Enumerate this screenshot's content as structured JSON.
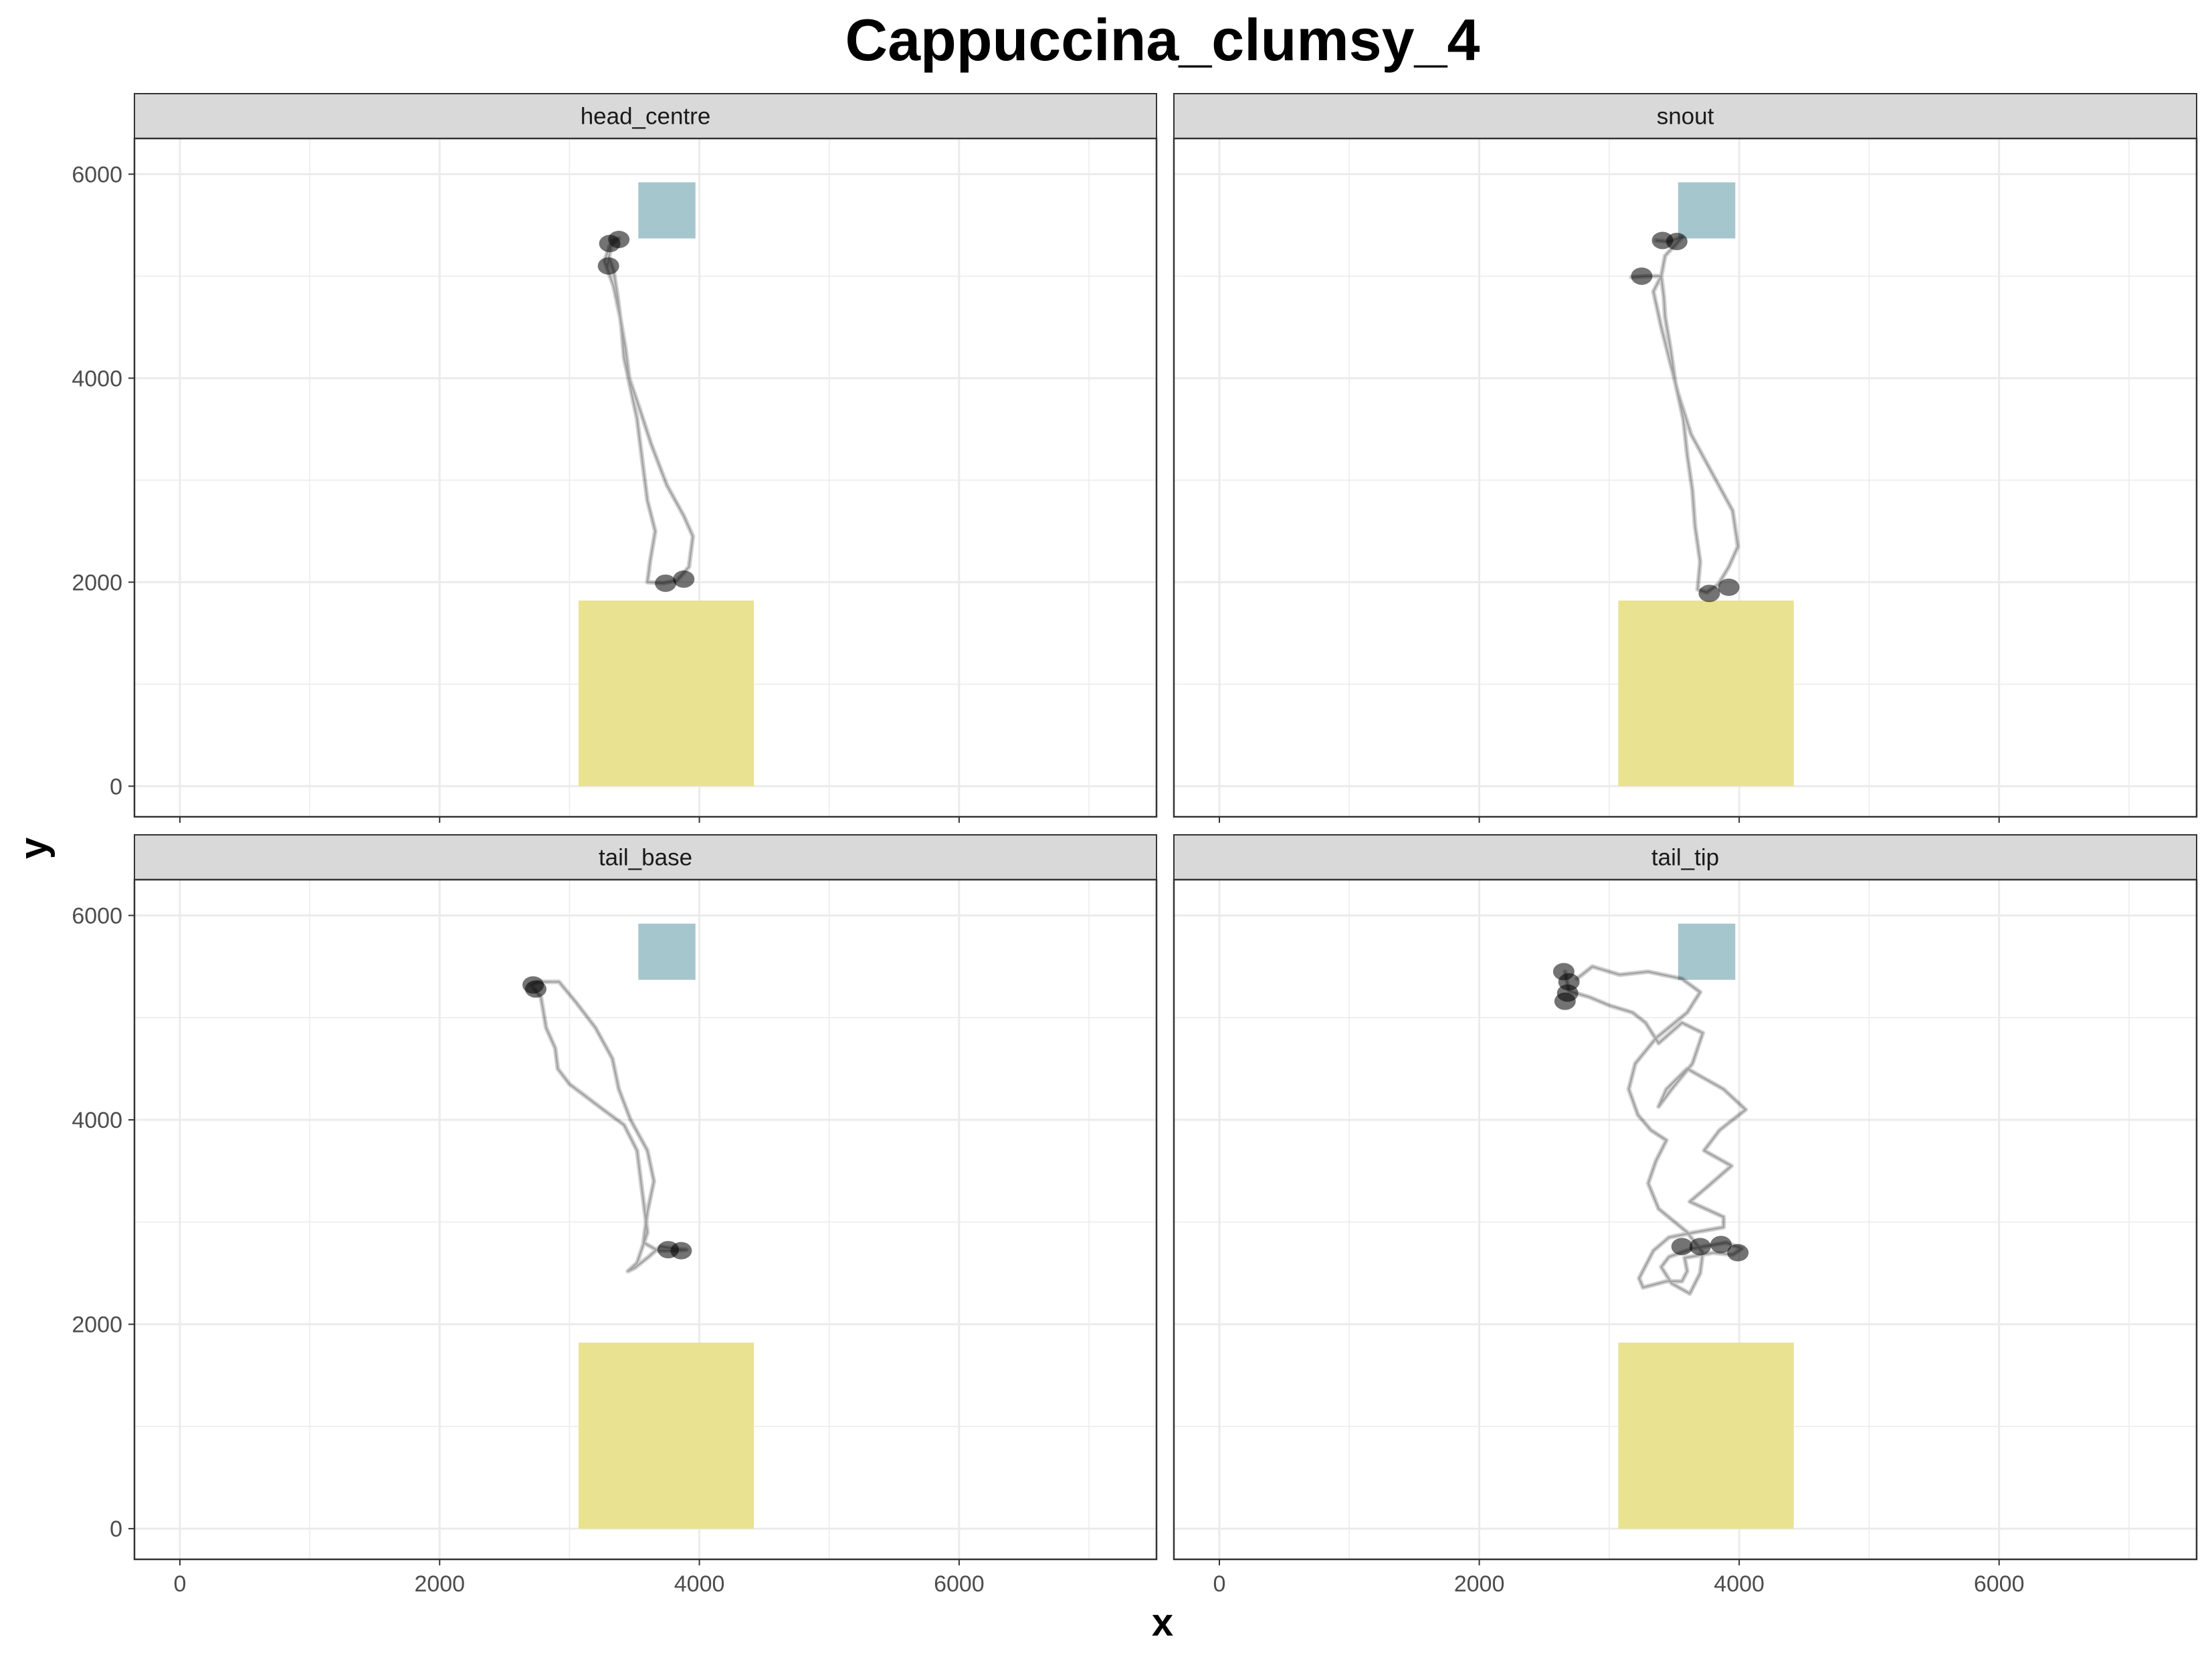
{
  "chart_data": {
    "type": "scatter",
    "title": "Cappuccina_clumsy_4",
    "xlabel": "x",
    "ylabel": "y",
    "xlim": [
      -350,
      7520
    ],
    "ylim": [
      -300,
      6350
    ],
    "x_ticks": [
      0,
      2000,
      4000,
      6000
    ],
    "y_ticks": [
      0,
      2000,
      4000,
      6000
    ],
    "grid": true,
    "layout": "facet-grid 2x2",
    "colors": {
      "zone_small": "#a6c6ce",
      "zone_large": "#e9e290",
      "track": "#000000",
      "strip_bg": "#d9d9d9",
      "grid": "#ebebeb",
      "border": "#333333"
    },
    "zones": [
      {
        "name": "small-zone",
        "x": [
          3530,
          3970
        ],
        "y": [
          5370,
          5920
        ],
        "color": "#a6c6ce"
      },
      {
        "name": "large-zone",
        "x": [
          3070,
          4420
        ],
        "y": [
          0,
          1820
        ],
        "color": "#e9e290"
      }
    ],
    "panels": [
      {
        "label": "head_centre",
        "track": [
          [
            3290,
            5080
          ],
          [
            3310,
            5230
          ],
          [
            3330,
            5350
          ],
          [
            3380,
            5370
          ],
          [
            3310,
            5300
          ],
          [
            3270,
            5150
          ],
          [
            3340,
            4900
          ],
          [
            3390,
            4600
          ],
          [
            3430,
            4300
          ],
          [
            3460,
            4000
          ],
          [
            3540,
            3700
          ],
          [
            3630,
            3350
          ],
          [
            3750,
            2950
          ],
          [
            3880,
            2650
          ],
          [
            3950,
            2450
          ],
          [
            3920,
            2150
          ],
          [
            3830,
            2020
          ],
          [
            3720,
            1990
          ],
          [
            3600,
            2000
          ],
          [
            3620,
            2200
          ],
          [
            3660,
            2500
          ],
          [
            3600,
            2800
          ],
          [
            3560,
            3200
          ],
          [
            3520,
            3600
          ],
          [
            3470,
            3900
          ],
          [
            3420,
            4200
          ],
          [
            3400,
            4500
          ],
          [
            3370,
            4800
          ],
          [
            3340,
            5050
          ],
          [
            3300,
            5200
          ]
        ],
        "clusters": [
          [
            3310,
            5320
          ],
          [
            3300,
            5100
          ],
          [
            3380,
            5360
          ],
          [
            3740,
            1990
          ],
          [
            3880,
            2030
          ]
        ]
      },
      {
        "label": "snout",
        "track": [
          [
            3360,
            5350
          ],
          [
            3460,
            5340
          ],
          [
            3560,
            5380
          ],
          [
            3430,
            5200
          ],
          [
            3400,
            5000
          ],
          [
            3340,
            4850
          ],
          [
            3400,
            4500
          ],
          [
            3460,
            4200
          ],
          [
            3530,
            3850
          ],
          [
            3630,
            3450
          ],
          [
            3800,
            3050
          ],
          [
            3950,
            2700
          ],
          [
            3990,
            2350
          ],
          [
            3920,
            2150
          ],
          [
            3840,
            1980
          ],
          [
            3750,
            1900
          ],
          [
            3680,
            1930
          ],
          [
            3700,
            2200
          ],
          [
            3660,
            2550
          ],
          [
            3640,
            2900
          ],
          [
            3600,
            3250
          ],
          [
            3570,
            3600
          ],
          [
            3510,
            3950
          ],
          [
            3470,
            4300
          ],
          [
            3430,
            4600
          ],
          [
            3420,
            4800
          ],
          [
            3400,
            5000
          ],
          [
            3290,
            5000
          ],
          [
            3170,
            4990
          ]
        ],
        "clusters": [
          [
            3410,
            5350
          ],
          [
            3520,
            5340
          ],
          [
            3250,
            5000
          ],
          [
            3770,
            1890
          ],
          [
            3920,
            1950
          ]
        ]
      },
      {
        "label": "tail_base",
        "track": [
          [
            2700,
            5320
          ],
          [
            2760,
            5350
          ],
          [
            2920,
            5350
          ],
          [
            3050,
            5150
          ],
          [
            3200,
            4900
          ],
          [
            3330,
            4600
          ],
          [
            3380,
            4300
          ],
          [
            3470,
            4000
          ],
          [
            3600,
            3700
          ],
          [
            3650,
            3400
          ],
          [
            3600,
            3100
          ],
          [
            3570,
            2800
          ],
          [
            3680,
            2720
          ],
          [
            3830,
            2720
          ],
          [
            3900,
            2730
          ],
          [
            3800,
            2740
          ],
          [
            3700,
            2760
          ],
          [
            3600,
            2650
          ],
          [
            3500,
            2550
          ],
          [
            3450,
            2520
          ],
          [
            3520,
            2600
          ],
          [
            3600,
            2900
          ],
          [
            3560,
            3300
          ],
          [
            3520,
            3700
          ],
          [
            3420,
            3950
          ],
          [
            3260,
            4100
          ],
          [
            3000,
            4350
          ],
          [
            2910,
            4500
          ],
          [
            2890,
            4700
          ],
          [
            2820,
            4900
          ],
          [
            2780,
            5200
          ],
          [
            2720,
            5290
          ]
        ],
        "clusters": [
          [
            2720,
            5320
          ],
          [
            2740,
            5280
          ],
          [
            3760,
            2730
          ],
          [
            3860,
            2720
          ]
        ]
      },
      {
        "label": "tail_tip",
        "track": [
          [
            2660,
            5450
          ],
          [
            2690,
            5260
          ],
          [
            2850,
            5200
          ],
          [
            3000,
            5120
          ],
          [
            3180,
            5050
          ],
          [
            3280,
            4950
          ],
          [
            3380,
            4750
          ],
          [
            3560,
            4950
          ],
          [
            3720,
            4850
          ],
          [
            3640,
            4550
          ],
          [
            3480,
            4300
          ],
          [
            3380,
            4130
          ],
          [
            3440,
            4300
          ],
          [
            3600,
            4500
          ],
          [
            3880,
            4300
          ],
          [
            4050,
            4100
          ],
          [
            3850,
            3900
          ],
          [
            3730,
            3700
          ],
          [
            3940,
            3550
          ],
          [
            3760,
            3350
          ],
          [
            3620,
            3200
          ],
          [
            3880,
            3050
          ],
          [
            3880,
            2950
          ],
          [
            3660,
            2900
          ],
          [
            3460,
            2850
          ],
          [
            3340,
            2720
          ],
          [
            3230,
            2450
          ],
          [
            3260,
            2360
          ],
          [
            3440,
            2420
          ],
          [
            3560,
            2420
          ],
          [
            3600,
            2520
          ],
          [
            3580,
            2650
          ],
          [
            3800,
            2700
          ],
          [
            3950,
            2680
          ],
          [
            4020,
            2740
          ],
          [
            3900,
            2800
          ],
          [
            3640,
            2740
          ],
          [
            3460,
            2660
          ],
          [
            3400,
            2560
          ],
          [
            3480,
            2400
          ],
          [
            3620,
            2300
          ],
          [
            3700,
            2500
          ],
          [
            3720,
            2700
          ],
          [
            3600,
            2900
          ],
          [
            3380,
            3130
          ],
          [
            3300,
            3380
          ],
          [
            3360,
            3600
          ],
          [
            3440,
            3800
          ],
          [
            3320,
            3900
          ],
          [
            3220,
            4050
          ],
          [
            3150,
            4300
          ],
          [
            3200,
            4550
          ],
          [
            3360,
            4800
          ],
          [
            3600,
            5050
          ],
          [
            3700,
            5250
          ],
          [
            3560,
            5380
          ],
          [
            3300,
            5450
          ],
          [
            3080,
            5420
          ],
          [
            2870,
            5500
          ],
          [
            2750,
            5380
          ]
        ],
        "clusters": [
          [
            2650,
            5450
          ],
          [
            2690,
            5350
          ],
          [
            2680,
            5240
          ],
          [
            2660,
            5160
          ],
          [
            3560,
            2760
          ],
          [
            3700,
            2760
          ],
          [
            3860,
            2780
          ],
          [
            3990,
            2700
          ]
        ]
      }
    ]
  }
}
